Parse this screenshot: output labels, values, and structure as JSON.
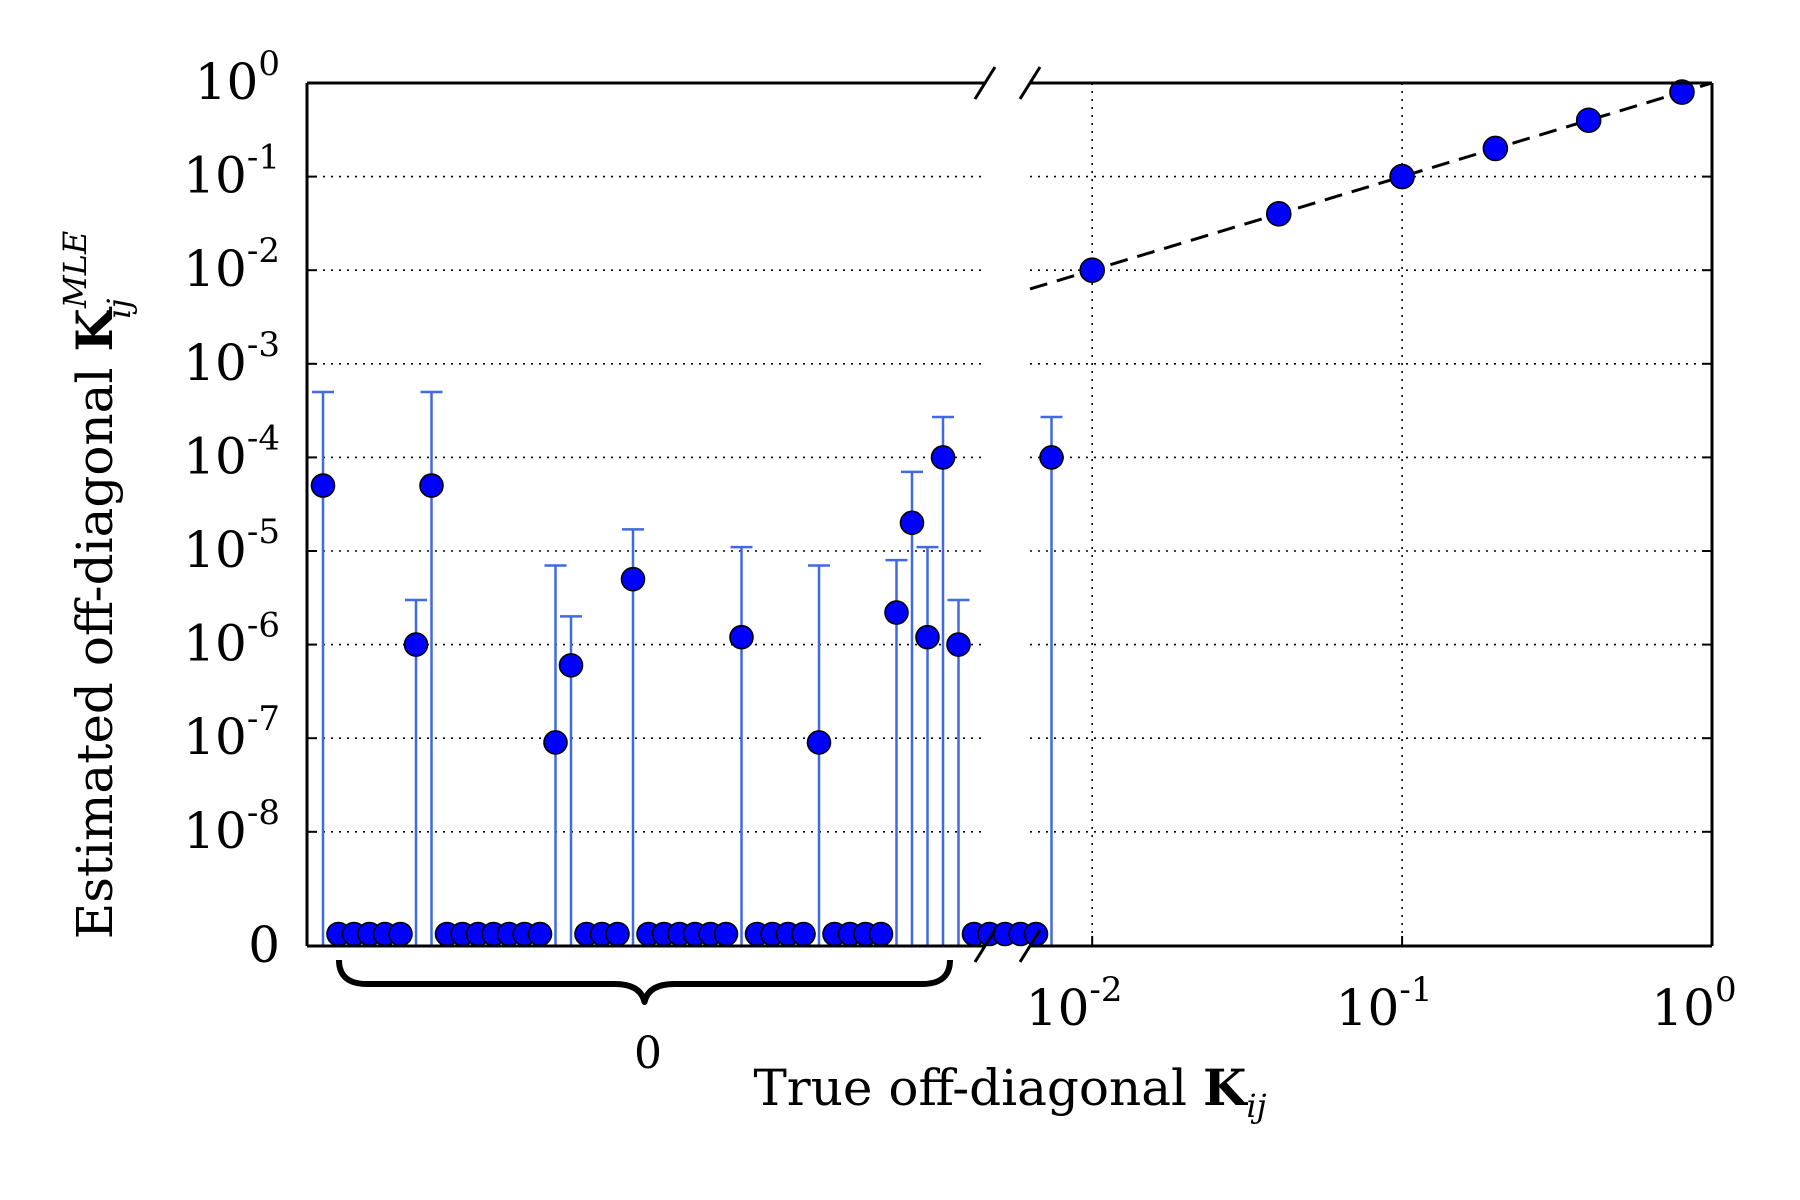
{
  "chart_data": {
    "type": "scatter",
    "ylabel": {
      "prefix": "Estimated off-diagonal ",
      "symbol": "K",
      "sub": "ij",
      "sup": "MLE"
    },
    "xlabel": {
      "prefix": "True off-diagonal ",
      "symbol": "K",
      "sub": "ij"
    },
    "zero_group_label": "0",
    "grid": "dotted",
    "y_axis": {
      "scale": "log",
      "lim": [
        0,
        1
      ],
      "tick_labels": [
        {
          "base": "10",
          "exp": "0",
          "value": 1
        },
        {
          "base": "10",
          "exp": "-1",
          "value": 0.1
        },
        {
          "base": "10",
          "exp": "-2",
          "value": 0.01
        },
        {
          "base": "10",
          "exp": "-3",
          "value": 0.001
        },
        {
          "base": "10",
          "exp": "-4",
          "value": 0.0001
        },
        {
          "base": "10",
          "exp": "-5",
          "value": 1e-05
        },
        {
          "base": "10",
          "exp": "-6",
          "value": 1e-06
        },
        {
          "base": "10",
          "exp": "-7",
          "value": 1e-07
        },
        {
          "base": "10",
          "exp": "-8",
          "value": 1e-08
        },
        {
          "base": "0",
          "exp": "",
          "value": 0
        }
      ]
    },
    "x_axis_right": {
      "scale": "log",
      "lim": [
        0.0063,
        1
      ],
      "tick_labels": [
        {
          "base": "10",
          "exp": "-2",
          "value": 0.01
        },
        {
          "base": "10",
          "exp": "-1",
          "value": 0.1
        },
        {
          "base": "10",
          "exp": "0",
          "value": 1
        }
      ]
    },
    "zero_group": {
      "true_value": 0,
      "estimates": [
        5e-05,
        0,
        0,
        0,
        0,
        0,
        1e-06,
        5e-05,
        0,
        0,
        0,
        0,
        0,
        0,
        0,
        9e-08,
        6e-07,
        0,
        0,
        0,
        5e-06,
        0,
        0,
        0,
        0,
        0,
        0,
        1.2e-06,
        0,
        0,
        0,
        0,
        9e-08,
        0,
        0,
        0,
        0,
        2.2e-06,
        2e-05,
        1.2e-06,
        0.0001,
        1e-06,
        0,
        0,
        0,
        0,
        0,
        0.0001
      ],
      "error_upper": [
        0.0005,
        null,
        null,
        null,
        null,
        null,
        3e-06,
        0.0005,
        null,
        null,
        null,
        null,
        null,
        null,
        null,
        7e-06,
        2e-06,
        null,
        null,
        null,
        1.7e-05,
        null,
        null,
        null,
        null,
        null,
        null,
        1.1e-05,
        null,
        null,
        null,
        null,
        7e-06,
        null,
        null,
        null,
        null,
        8e-06,
        7e-05,
        1.1e-05,
        0.00027,
        3e-06,
        null,
        null,
        null,
        null,
        null,
        0.00027
      ]
    },
    "nonzero_group": {
      "x": [
        0.01,
        0.04,
        0.1,
        0.2,
        0.4,
        0.8
      ],
      "y": [
        0.01,
        0.04,
        0.1,
        0.2,
        0.4,
        0.8
      ]
    },
    "reference_line": {
      "style": "dashed",
      "slope": 1,
      "color": "#000000"
    },
    "colors": {
      "marker_fill": "#0000ff",
      "marker_edge": "#000000",
      "error_bar": "#4169e1",
      "grid": "#000000"
    }
  }
}
